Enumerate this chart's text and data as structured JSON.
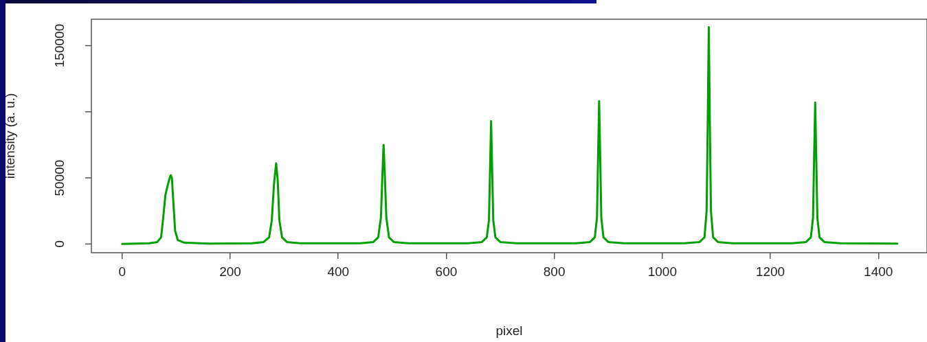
{
  "chart_data": {
    "type": "line",
    "xlabel": "pixel",
    "ylabel": "intensity (a. u.)",
    "xlim": [
      -57,
      1490
    ],
    "ylim": [
      -6600,
      170000
    ],
    "xticks": [
      0,
      200,
      400,
      600,
      800,
      1000,
      1200,
      1400
    ],
    "yticks": [
      0,
      50000,
      {
        "value": 100000,
        "label": null
      },
      150000
    ],
    "grid": false,
    "legend": false,
    "marker": "none",
    "line_style": "solid",
    "series": [
      {
        "color": "#00a000",
        "x": [
          0,
          50,
          65,
          72,
          76,
          80,
          84,
          88,
          90,
          92,
          95,
          98,
          103,
          115,
          160,
          240,
          262,
          272,
          277,
          281,
          285,
          288,
          291,
          296,
          305,
          330,
          440,
          465,
          474,
          479,
          482,
          484,
          486,
          489,
          494,
          503,
          530,
          640,
          666,
          675,
          679,
          681,
          683,
          685,
          687,
          691,
          700,
          730,
          840,
          866,
          875,
          879,
          881,
          883,
          885,
          887,
          891,
          900,
          930,
          1040,
          1069,
          1078,
          1082,
          1084,
          1086,
          1088,
          1090,
          1094,
          1103,
          1130,
          1240,
          1266,
          1275,
          1279,
          1281,
          1283,
          1285,
          1287,
          1291,
          1300,
          1330,
          1435
        ],
        "values": [
          0,
          500,
          1500,
          5000,
          20000,
          37000,
          44000,
          50000,
          52000,
          50000,
          30000,
          10000,
          3000,
          1000,
          300,
          500,
          1500,
          5000,
          18000,
          45000,
          61000,
          48000,
          18000,
          5000,
          1500,
          500,
          500,
          1500,
          5000,
          20000,
          55000,
          75000,
          55000,
          20000,
          5000,
          1500,
          500,
          500,
          1500,
          5000,
          18000,
          55000,
          93000,
          55000,
          18000,
          5000,
          1500,
          500,
          500,
          1500,
          5000,
          20000,
          65000,
          108000,
          65000,
          20000,
          5000,
          1500,
          500,
          500,
          1500,
          5000,
          25000,
          90000,
          164000,
          90000,
          25000,
          5000,
          1500,
          500,
          500,
          1500,
          5000,
          20000,
          65000,
          107000,
          65000,
          20000,
          5000,
          1500,
          500,
          300
        ]
      }
    ]
  }
}
